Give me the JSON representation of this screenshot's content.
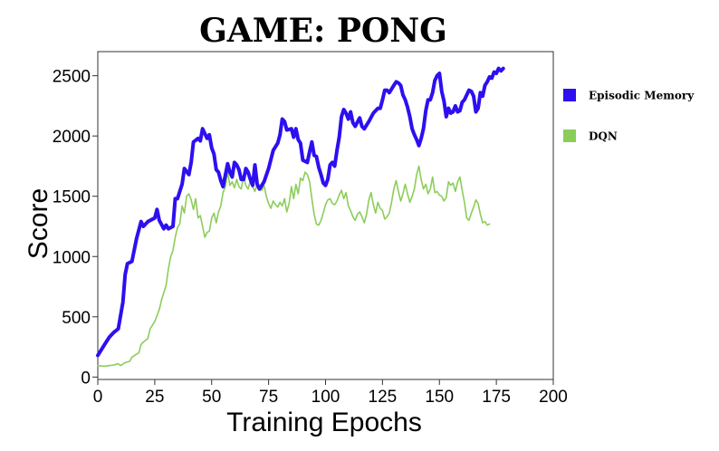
{
  "chart_data": {
    "type": "line",
    "title": "GAME: PONG",
    "xlabel": "Training Epochs",
    "ylabel": "Score",
    "xlim": [
      0,
      200
    ],
    "ylim": [
      -20,
      2700
    ],
    "x_ticks": [
      0,
      25,
      50,
      75,
      100,
      125,
      150,
      175,
      200
    ],
    "y_ticks": [
      0,
      500,
      1000,
      1500,
      2000,
      2500
    ],
    "grid": false,
    "legend_position": "right",
    "series": [
      {
        "name": "Episodic Memory",
        "color": "#2d0ff0",
        "points": [
          [
            0,
            180
          ],
          [
            3,
            270
          ],
          [
            5,
            330
          ],
          [
            7,
            370
          ],
          [
            9,
            400
          ],
          [
            11,
            620
          ],
          [
            12,
            850
          ],
          [
            13,
            940
          ],
          [
            15,
            960
          ],
          [
            17,
            1150
          ],
          [
            19,
            1290
          ],
          [
            20,
            1250
          ],
          [
            22,
            1290
          ],
          [
            25,
            1320
          ],
          [
            26,
            1390
          ],
          [
            27,
            1300
          ],
          [
            29,
            1230
          ],
          [
            30,
            1260
          ],
          [
            31,
            1230
          ],
          [
            33,
            1250
          ],
          [
            34,
            1480
          ],
          [
            35,
            1480
          ],
          [
            37,
            1600
          ],
          [
            38,
            1730
          ],
          [
            40,
            1680
          ],
          [
            41,
            1780
          ],
          [
            42,
            1950
          ],
          [
            44,
            1980
          ],
          [
            45,
            1960
          ],
          [
            46,
            2060
          ],
          [
            48,
            1980
          ],
          [
            49,
            2010
          ],
          [
            50,
            1900
          ],
          [
            51,
            1850
          ],
          [
            52,
            1720
          ],
          [
            53,
            1700
          ],
          [
            54,
            1630
          ],
          [
            55,
            1580
          ],
          [
            57,
            1770
          ],
          [
            58,
            1700
          ],
          [
            59,
            1660
          ],
          [
            60,
            1780
          ],
          [
            61,
            1760
          ],
          [
            62,
            1720
          ],
          [
            63,
            1640
          ],
          [
            64,
            1640
          ],
          [
            65,
            1730
          ],
          [
            66,
            1700
          ],
          [
            67,
            1640
          ],
          [
            68,
            1590
          ],
          [
            69,
            1760
          ],
          [
            70,
            1600
          ],
          [
            71,
            1560
          ],
          [
            73,
            1620
          ],
          [
            75,
            1730
          ],
          [
            77,
            1880
          ],
          [
            79,
            1940
          ],
          [
            80,
            2010
          ],
          [
            81,
            2140
          ],
          [
            82,
            2120
          ],
          [
            83,
            2050
          ],
          [
            85,
            2060
          ],
          [
            86,
            1990
          ],
          [
            87,
            2060
          ],
          [
            88,
            1970
          ],
          [
            89,
            1940
          ],
          [
            90,
            1800
          ],
          [
            92,
            1780
          ],
          [
            93,
            1870
          ],
          [
            94,
            1950
          ],
          [
            95,
            1840
          ],
          [
            96,
            1830
          ],
          [
            97,
            1740
          ],
          [
            98,
            1680
          ],
          [
            99,
            1610
          ],
          [
            100,
            1590
          ],
          [
            101,
            1640
          ],
          [
            102,
            1760
          ],
          [
            103,
            1780
          ],
          [
            104,
            1750
          ],
          [
            105,
            1880
          ],
          [
            106,
            1990
          ],
          [
            107,
            2160
          ],
          [
            108,
            2220
          ],
          [
            109,
            2190
          ],
          [
            110,
            2140
          ],
          [
            111,
            2200
          ],
          [
            112,
            2110
          ],
          [
            113,
            2080
          ],
          [
            115,
            2150
          ],
          [
            116,
            2080
          ],
          [
            117,
            2060
          ],
          [
            119,
            2120
          ],
          [
            121,
            2190
          ],
          [
            123,
            2230
          ],
          [
            124,
            2230
          ],
          [
            125,
            2300
          ],
          [
            126,
            2380
          ],
          [
            127,
            2380
          ],
          [
            128,
            2360
          ],
          [
            130,
            2420
          ],
          [
            131,
            2450
          ],
          [
            132,
            2440
          ],
          [
            133,
            2420
          ],
          [
            134,
            2340
          ],
          [
            135,
            2300
          ],
          [
            136,
            2240
          ],
          [
            137,
            2160
          ],
          [
            138,
            2060
          ],
          [
            139,
            2010
          ],
          [
            140,
            1970
          ],
          [
            141,
            1920
          ],
          [
            142,
            1980
          ],
          [
            143,
            2060
          ],
          [
            144,
            2210
          ],
          [
            145,
            2300
          ],
          [
            146,
            2300
          ],
          [
            147,
            2360
          ],
          [
            148,
            2460
          ],
          [
            149,
            2500
          ],
          [
            150,
            2520
          ],
          [
            151,
            2370
          ],
          [
            152,
            2290
          ],
          [
            153,
            2160
          ],
          [
            154,
            2230
          ],
          [
            155,
            2190
          ],
          [
            156,
            2200
          ],
          [
            157,
            2250
          ],
          [
            158,
            2200
          ],
          [
            159,
            2210
          ],
          [
            160,
            2280
          ],
          [
            161,
            2300
          ],
          [
            162,
            2340
          ],
          [
            163,
            2380
          ],
          [
            164,
            2370
          ],
          [
            165,
            2330
          ],
          [
            166,
            2200
          ],
          [
            167,
            2230
          ],
          [
            168,
            2360
          ],
          [
            169,
            2330
          ],
          [
            170,
            2420
          ],
          [
            171,
            2450
          ],
          [
            172,
            2490
          ],
          [
            173,
            2480
          ],
          [
            174,
            2530
          ],
          [
            175,
            2520
          ],
          [
            176,
            2560
          ],
          [
            177,
            2540
          ],
          [
            178,
            2560
          ]
        ]
      },
      {
        "name": "DQN",
        "color": "#8ccd5a",
        "points": [
          [
            0,
            95
          ],
          [
            3,
            90
          ],
          [
            5,
            95
          ],
          [
            7,
            100
          ],
          [
            9,
            110
          ],
          [
            10,
            95
          ],
          [
            12,
            120
          ],
          [
            14,
            130
          ],
          [
            15,
            165
          ],
          [
            17,
            190
          ],
          [
            18,
            200
          ],
          [
            19,
            270
          ],
          [
            20,
            290
          ],
          [
            22,
            320
          ],
          [
            23,
            400
          ],
          [
            25,
            460
          ],
          [
            26,
            510
          ],
          [
            27,
            560
          ],
          [
            28,
            640
          ],
          [
            29,
            700
          ],
          [
            30,
            760
          ],
          [
            31,
            900
          ],
          [
            32,
            1000
          ],
          [
            33,
            1050
          ],
          [
            34,
            1160
          ],
          [
            35,
            1240
          ],
          [
            36,
            1270
          ],
          [
            37,
            1420
          ],
          [
            38,
            1360
          ],
          [
            39,
            1500
          ],
          [
            40,
            1520
          ],
          [
            41,
            1470
          ],
          [
            42,
            1390
          ],
          [
            43,
            1480
          ],
          [
            44,
            1320
          ],
          [
            45,
            1340
          ],
          [
            46,
            1250
          ],
          [
            47,
            1160
          ],
          [
            48,
            1200
          ],
          [
            49,
            1210
          ],
          [
            50,
            1320
          ],
          [
            51,
            1360
          ],
          [
            52,
            1280
          ],
          [
            53,
            1370
          ],
          [
            54,
            1420
          ],
          [
            55,
            1530
          ],
          [
            56,
            1580
          ],
          [
            57,
            1700
          ],
          [
            58,
            1590
          ],
          [
            59,
            1620
          ],
          [
            60,
            1570
          ],
          [
            61,
            1640
          ],
          [
            62,
            1580
          ],
          [
            63,
            1560
          ],
          [
            64,
            1660
          ],
          [
            65,
            1590
          ],
          [
            66,
            1560
          ],
          [
            67,
            1630
          ],
          [
            68,
            1580
          ],
          [
            69,
            1540
          ],
          [
            70,
            1600
          ],
          [
            71,
            1560
          ],
          [
            72,
            1550
          ],
          [
            73,
            1590
          ],
          [
            74,
            1500
          ],
          [
            75,
            1440
          ],
          [
            76,
            1400
          ],
          [
            77,
            1460
          ],
          [
            78,
            1430
          ],
          [
            79,
            1410
          ],
          [
            80,
            1450
          ],
          [
            81,
            1420
          ],
          [
            82,
            1480
          ],
          [
            83,
            1370
          ],
          [
            84,
            1440
          ],
          [
            85,
            1580
          ],
          [
            86,
            1480
          ],
          [
            87,
            1600
          ],
          [
            88,
            1520
          ],
          [
            89,
            1650
          ],
          [
            90,
            1630
          ],
          [
            91,
            1700
          ],
          [
            92,
            1680
          ],
          [
            93,
            1620
          ],
          [
            94,
            1480
          ],
          [
            95,
            1350
          ],
          [
            96,
            1270
          ],
          [
            97,
            1260
          ],
          [
            98,
            1300
          ],
          [
            99,
            1360
          ],
          [
            100,
            1430
          ],
          [
            101,
            1470
          ],
          [
            102,
            1480
          ],
          [
            103,
            1440
          ],
          [
            104,
            1430
          ],
          [
            105,
            1460
          ],
          [
            106,
            1510
          ],
          [
            107,
            1550
          ],
          [
            108,
            1480
          ],
          [
            109,
            1530
          ],
          [
            110,
            1420
          ],
          [
            111,
            1380
          ],
          [
            112,
            1330
          ],
          [
            113,
            1300
          ],
          [
            114,
            1350
          ],
          [
            115,
            1370
          ],
          [
            116,
            1330
          ],
          [
            117,
            1280
          ],
          [
            118,
            1350
          ],
          [
            119,
            1470
          ],
          [
            120,
            1530
          ],
          [
            121,
            1430
          ],
          [
            122,
            1360
          ],
          [
            123,
            1450
          ],
          [
            124,
            1400
          ],
          [
            125,
            1380
          ],
          [
            126,
            1310
          ],
          [
            127,
            1330
          ],
          [
            128,
            1360
          ],
          [
            129,
            1450
          ],
          [
            130,
            1560
          ],
          [
            131,
            1630
          ],
          [
            132,
            1540
          ],
          [
            133,
            1460
          ],
          [
            134,
            1520
          ],
          [
            135,
            1600
          ],
          [
            136,
            1520
          ],
          [
            137,
            1450
          ],
          [
            138,
            1500
          ],
          [
            139,
            1560
          ],
          [
            140,
            1680
          ],
          [
            141,
            1750
          ],
          [
            142,
            1640
          ],
          [
            143,
            1560
          ],
          [
            144,
            1600
          ],
          [
            145,
            1520
          ],
          [
            146,
            1560
          ],
          [
            147,
            1660
          ],
          [
            148,
            1530
          ],
          [
            149,
            1540
          ],
          [
            150,
            1510
          ],
          [
            151,
            1500
          ],
          [
            152,
            1460
          ],
          [
            153,
            1490
          ],
          [
            154,
            1620
          ],
          [
            155,
            1590
          ],
          [
            156,
            1610
          ],
          [
            157,
            1540
          ],
          [
            158,
            1620
          ],
          [
            159,
            1660
          ],
          [
            160,
            1550
          ],
          [
            161,
            1450
          ],
          [
            162,
            1320
          ],
          [
            163,
            1300
          ],
          [
            164,
            1360
          ],
          [
            165,
            1410
          ],
          [
            166,
            1470
          ],
          [
            167,
            1440
          ],
          [
            168,
            1350
          ],
          [
            169,
            1280
          ],
          [
            170,
            1290
          ],
          [
            171,
            1260
          ],
          [
            172,
            1270
          ]
        ]
      }
    ]
  }
}
